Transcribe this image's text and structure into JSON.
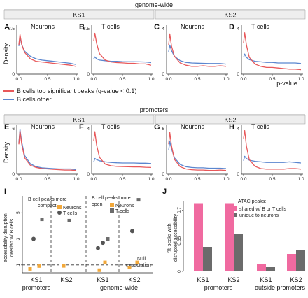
{
  "colors": {
    "red_curve": "#e8585a",
    "blue_curve": "#5b86cf",
    "pink_bar": "#f06aa0",
    "gray_bar": "#6b6b6b",
    "orange_point": "#f2a83a",
    "gray_point": "#555555"
  },
  "headers": {
    "genome_wide": "genome-wide",
    "promoters": "promoters",
    "ks1": "KS1",
    "ks2": "KS2"
  },
  "legend": {
    "red": "B cells top significant peaks (q-value < 0.1)",
    "blue": "B cells other"
  },
  "density_axis": {
    "ylabel": "Density",
    "xlabel": "p-value",
    "xticks": [
      "0.0",
      "0.5",
      "1.0"
    ]
  },
  "density_panels": [
    {
      "letter": "A",
      "title": "Neurons",
      "ymax_label": "3.5"
    },
    {
      "letter": "B",
      "title": "T cells",
      "ymax_label": "3.5"
    },
    {
      "letter": "C",
      "title": "Neurons",
      "ymax_label": "4"
    },
    {
      "letter": "D",
      "title": "T cells",
      "ymax_label": "4"
    },
    {
      "letter": "E",
      "title": "Neurons",
      "ymax_label": "6"
    },
    {
      "letter": "F",
      "title": "T cells",
      "ymax_label": "4"
    },
    {
      "letter": "G",
      "title": "Neurons",
      "ymax_label": "6"
    },
    {
      "letter": "H",
      "title": "T cells",
      "ymax_label": "4"
    }
  ],
  "panel_I": {
    "letter": "I",
    "ylabel_line1": "accessibility disruption",
    "ylabel_line2": "overlap w/ B cells",
    "yticks": [
      "1",
      "3",
      "5"
    ],
    "annot_left": [
      "B cell peaks more",
      "compact"
    ],
    "annot_right": [
      "B cell peaks more",
      "open"
    ],
    "legend_neurons": "Neurons",
    "legend_tcells": "T cells",
    "null_label": [
      "Null",
      "expectation"
    ],
    "group_labels": [
      "KS1",
      "KS2",
      "KS1",
      "KS2"
    ],
    "section_labels": [
      "promoters",
      "genome-wide"
    ]
  },
  "panel_J": {
    "letter": "J",
    "ylabel_line1": "% peaks with",
    "ylabel_line2": "disrupted accessibility",
    "yticks": [
      "0",
      "0.35",
      "0.7"
    ],
    "legend_title": "ATAC peaks:",
    "legend_pink": "shared w/ B or T cells",
    "legend_gray": "unique to neurons",
    "group_labels": [
      "KS1",
      "KS2",
      "KS1",
      "KS2"
    ],
    "section_labels": [
      "promoters",
      "outside promoters"
    ]
  },
  "chart_data": [
    {
      "type": "line",
      "panel": "A",
      "title": "Neurons",
      "xlabel": "p-value",
      "ylabel": "Density",
      "xlim": [
        0,
        1
      ],
      "ylim": [
        0,
        3.5
      ],
      "x": [
        0.0,
        0.02,
        0.05,
        0.1,
        0.2,
        0.3,
        0.4,
        0.5,
        0.6,
        0.7,
        0.8,
        0.9,
        1.0
      ],
      "series": [
        {
          "name": "B cells top significant peaks (q-value < 0.1)",
          "values": [
            2.3,
            3.1,
            2.3,
            1.7,
            1.2,
            1.0,
            0.95,
            0.9,
            0.85,
            0.8,
            0.75,
            0.7,
            0.6
          ]
        },
        {
          "name": "B cells other",
          "values": [
            2.2,
            2.9,
            2.3,
            1.8,
            1.4,
            1.2,
            1.1,
            1.05,
            1.0,
            0.95,
            0.9,
            0.85,
            0.75
          ]
        }
      ]
    },
    {
      "type": "line",
      "panel": "B",
      "title": "T cells",
      "xlabel": "p-value",
      "ylabel": "Density",
      "xlim": [
        0,
        1
      ],
      "ylim": [
        0,
        3.5
      ],
      "x": [
        0.0,
        0.02,
        0.05,
        0.1,
        0.2,
        0.3,
        0.4,
        0.5,
        0.6,
        0.7,
        0.8,
        0.9,
        1.0
      ],
      "series": [
        {
          "name": "B cells top significant peaks (q-value < 0.1)",
          "values": [
            2.6,
            3.2,
            2.4,
            1.6,
            1.1,
            0.95,
            0.9,
            0.88,
            0.85,
            0.85,
            0.8,
            0.8,
            0.7
          ]
        },
        {
          "name": "B cells other",
          "values": [
            1.2,
            1.35,
            1.2,
            1.1,
            1.05,
            1.0,
            1.0,
            0.98,
            0.97,
            0.97,
            0.96,
            0.95,
            0.9
          ]
        }
      ]
    },
    {
      "type": "line",
      "panel": "C",
      "title": "Neurons",
      "xlabel": "p-value",
      "ylabel": "Density",
      "xlim": [
        0,
        1
      ],
      "ylim": [
        0,
        4
      ],
      "x": [
        0.0,
        0.02,
        0.05,
        0.1,
        0.2,
        0.3,
        0.4,
        0.5,
        0.6,
        0.7,
        0.8,
        0.9,
        1.0
      ],
      "series": [
        {
          "name": "B cells top significant peaks (q-value < 0.1)",
          "values": [
            2.6,
            3.6,
            2.5,
            1.6,
            1.0,
            0.8,
            0.7,
            0.7,
            0.75,
            0.7,
            0.7,
            0.75,
            0.7
          ]
        },
        {
          "name": "B cells other",
          "values": [
            2.0,
            2.6,
            2.1,
            1.6,
            1.2,
            1.05,
            1.0,
            0.98,
            0.97,
            0.95,
            0.95,
            0.95,
            0.9
          ]
        }
      ]
    },
    {
      "type": "line",
      "panel": "D",
      "title": "T cells",
      "xlabel": "p-value",
      "ylabel": "Density",
      "xlim": [
        0,
        1
      ],
      "ylim": [
        0,
        4
      ],
      "x": [
        0.0,
        0.02,
        0.05,
        0.1,
        0.2,
        0.3,
        0.4,
        0.5,
        0.6,
        0.7,
        0.8,
        0.9,
        1.0
      ],
      "series": [
        {
          "name": "B cells top significant peaks (q-value < 0.1)",
          "values": [
            2.8,
            3.7,
            2.6,
            1.5,
            0.9,
            0.7,
            0.6,
            0.6,
            0.55,
            0.5,
            0.45,
            0.45,
            0.4
          ]
        },
        {
          "name": "B cells other",
          "values": [
            1.5,
            1.8,
            1.5,
            1.3,
            1.15,
            1.1,
            1.05,
            1.05,
            1.0,
            1.0,
            1.0,
            1.0,
            0.95
          ]
        }
      ]
    },
    {
      "type": "line",
      "panel": "E",
      "title": "Neurons",
      "xlabel": "p-value",
      "ylabel": "Density",
      "xlim": [
        0,
        1
      ],
      "ylim": [
        0,
        6
      ],
      "x": [
        0.0,
        0.02,
        0.05,
        0.1,
        0.2,
        0.3,
        0.4,
        0.5,
        0.6,
        0.7,
        0.8,
        0.9,
        1.0
      ],
      "series": [
        {
          "name": "B cells top significant peaks (q-value < 0.1)",
          "values": [
            4.0,
            5.8,
            4.0,
            2.2,
            1.2,
            0.9,
            0.75,
            0.7,
            0.65,
            0.6,
            0.55,
            0.55,
            0.5
          ]
        },
        {
          "name": "B cells other",
          "values": [
            4.2,
            6.0,
            4.3,
            2.5,
            1.4,
            1.0,
            0.85,
            0.8,
            0.75,
            0.7,
            0.7,
            0.7,
            0.6
          ]
        }
      ]
    },
    {
      "type": "line",
      "panel": "F",
      "title": "T cells",
      "xlabel": "p-value",
      "ylabel": "Density",
      "xlim": [
        0,
        1
      ],
      "ylim": [
        0,
        4
      ],
      "x": [
        0.0,
        0.02,
        0.05,
        0.1,
        0.2,
        0.3,
        0.4,
        0.5,
        0.6,
        0.7,
        0.8,
        0.9,
        1.0
      ],
      "series": [
        {
          "name": "B cells top significant peaks (q-value < 0.1)",
          "values": [
            3.0,
            3.8,
            2.6,
            1.5,
            0.9,
            0.75,
            0.7,
            0.68,
            0.66,
            0.65,
            0.65,
            0.62,
            0.6
          ]
        },
        {
          "name": "B cells other",
          "values": [
            1.1,
            1.4,
            1.3,
            1.2,
            1.1,
            1.05,
            1.02,
            1.0,
            1.0,
            1.0,
            0.98,
            0.98,
            0.95
          ]
        }
      ]
    },
    {
      "type": "line",
      "panel": "G",
      "title": "Neurons",
      "xlabel": "p-value",
      "ylabel": "Density",
      "xlim": [
        0,
        1
      ],
      "ylim": [
        0,
        6
      ],
      "x": [
        0.0,
        0.02,
        0.05,
        0.1,
        0.2,
        0.3,
        0.4,
        0.5,
        0.6,
        0.7,
        0.8,
        0.9,
        1.0
      ],
      "series": [
        {
          "name": "B cells top significant peaks (q-value < 0.1)",
          "values": [
            4.0,
            5.6,
            3.8,
            2.0,
            1.0,
            0.7,
            0.6,
            0.55,
            0.55,
            0.5,
            0.5,
            0.55,
            0.5
          ]
        },
        {
          "name": "B cells other",
          "values": [
            3.2,
            4.4,
            3.4,
            2.2,
            1.3,
            1.0,
            0.9,
            0.85,
            0.85,
            0.8,
            0.8,
            0.8,
            0.75
          ]
        }
      ]
    },
    {
      "type": "line",
      "panel": "H",
      "title": "T cells",
      "xlabel": "p-value",
      "ylabel": "Density",
      "xlim": [
        0,
        1
      ],
      "ylim": [
        0,
        4
      ],
      "x": [
        0.0,
        0.02,
        0.05,
        0.1,
        0.2,
        0.3,
        0.4,
        0.5,
        0.6,
        0.7,
        0.8,
        0.9,
        1.0
      ],
      "series": [
        {
          "name": "B cells top significant peaks (q-value < 0.1)",
          "values": [
            3.2,
            3.9,
            2.5,
            1.3,
            0.7,
            0.5,
            0.45,
            0.45,
            0.45,
            0.45,
            0.5,
            0.5,
            0.45
          ]
        },
        {
          "name": "B cells other",
          "values": [
            1.2,
            1.6,
            1.4,
            1.25,
            1.15,
            1.1,
            1.05,
            1.05,
            1.05,
            1.05,
            1.1,
            1.05,
            1.0
          ]
        }
      ]
    },
    {
      "type": "scatter",
      "panel": "I",
      "ylabel": "accessibility disruption overlap w/ B cells",
      "categories": [
        "KS1 promoters",
        "KS2 promoters",
        "KS1 genome-wide",
        "KS2 genome-wide"
      ],
      "ylim": [
        0.4,
        6.3
      ],
      "null_expectation": 1,
      "series": [
        {
          "name": "Neurons",
          "points": [
            [
              0,
              0.7
            ],
            [
              0,
              0.92
            ],
            [
              1,
              0.93
            ],
            [
              2,
              0.6
            ],
            [
              2,
              1.2
            ],
            [
              3,
              0.8
            ],
            [
              3,
              1.2
            ]
          ]
        },
        {
          "name": "T cells",
          "points": [
            [
              0,
              3.0
            ],
            [
              0,
              4.5
            ],
            [
              1,
              4.4
            ],
            [
              2,
              2.3
            ],
            [
              2,
              2.7
            ],
            [
              2,
              3.0
            ],
            [
              3,
              3.6
            ],
            [
              3,
              6.0
            ]
          ]
        }
      ]
    },
    {
      "type": "bar",
      "panel": "J",
      "ylabel": "% peaks with disrupted accessibility",
      "categories": [
        "KS1 promoters",
        "KS2 promoters",
        "KS1 outside promoters",
        "KS2 outside promoters"
      ],
      "ylim": [
        0,
        0.8
      ],
      "series": [
        {
          "name": "shared w/ B or T cells",
          "values": [
            0.78,
            0.78,
            0.08,
            0.2
          ]
        },
        {
          "name": "unique to neurons",
          "values": [
            0.28,
            0.43,
            0.05,
            0.24
          ]
        }
      ]
    }
  ]
}
